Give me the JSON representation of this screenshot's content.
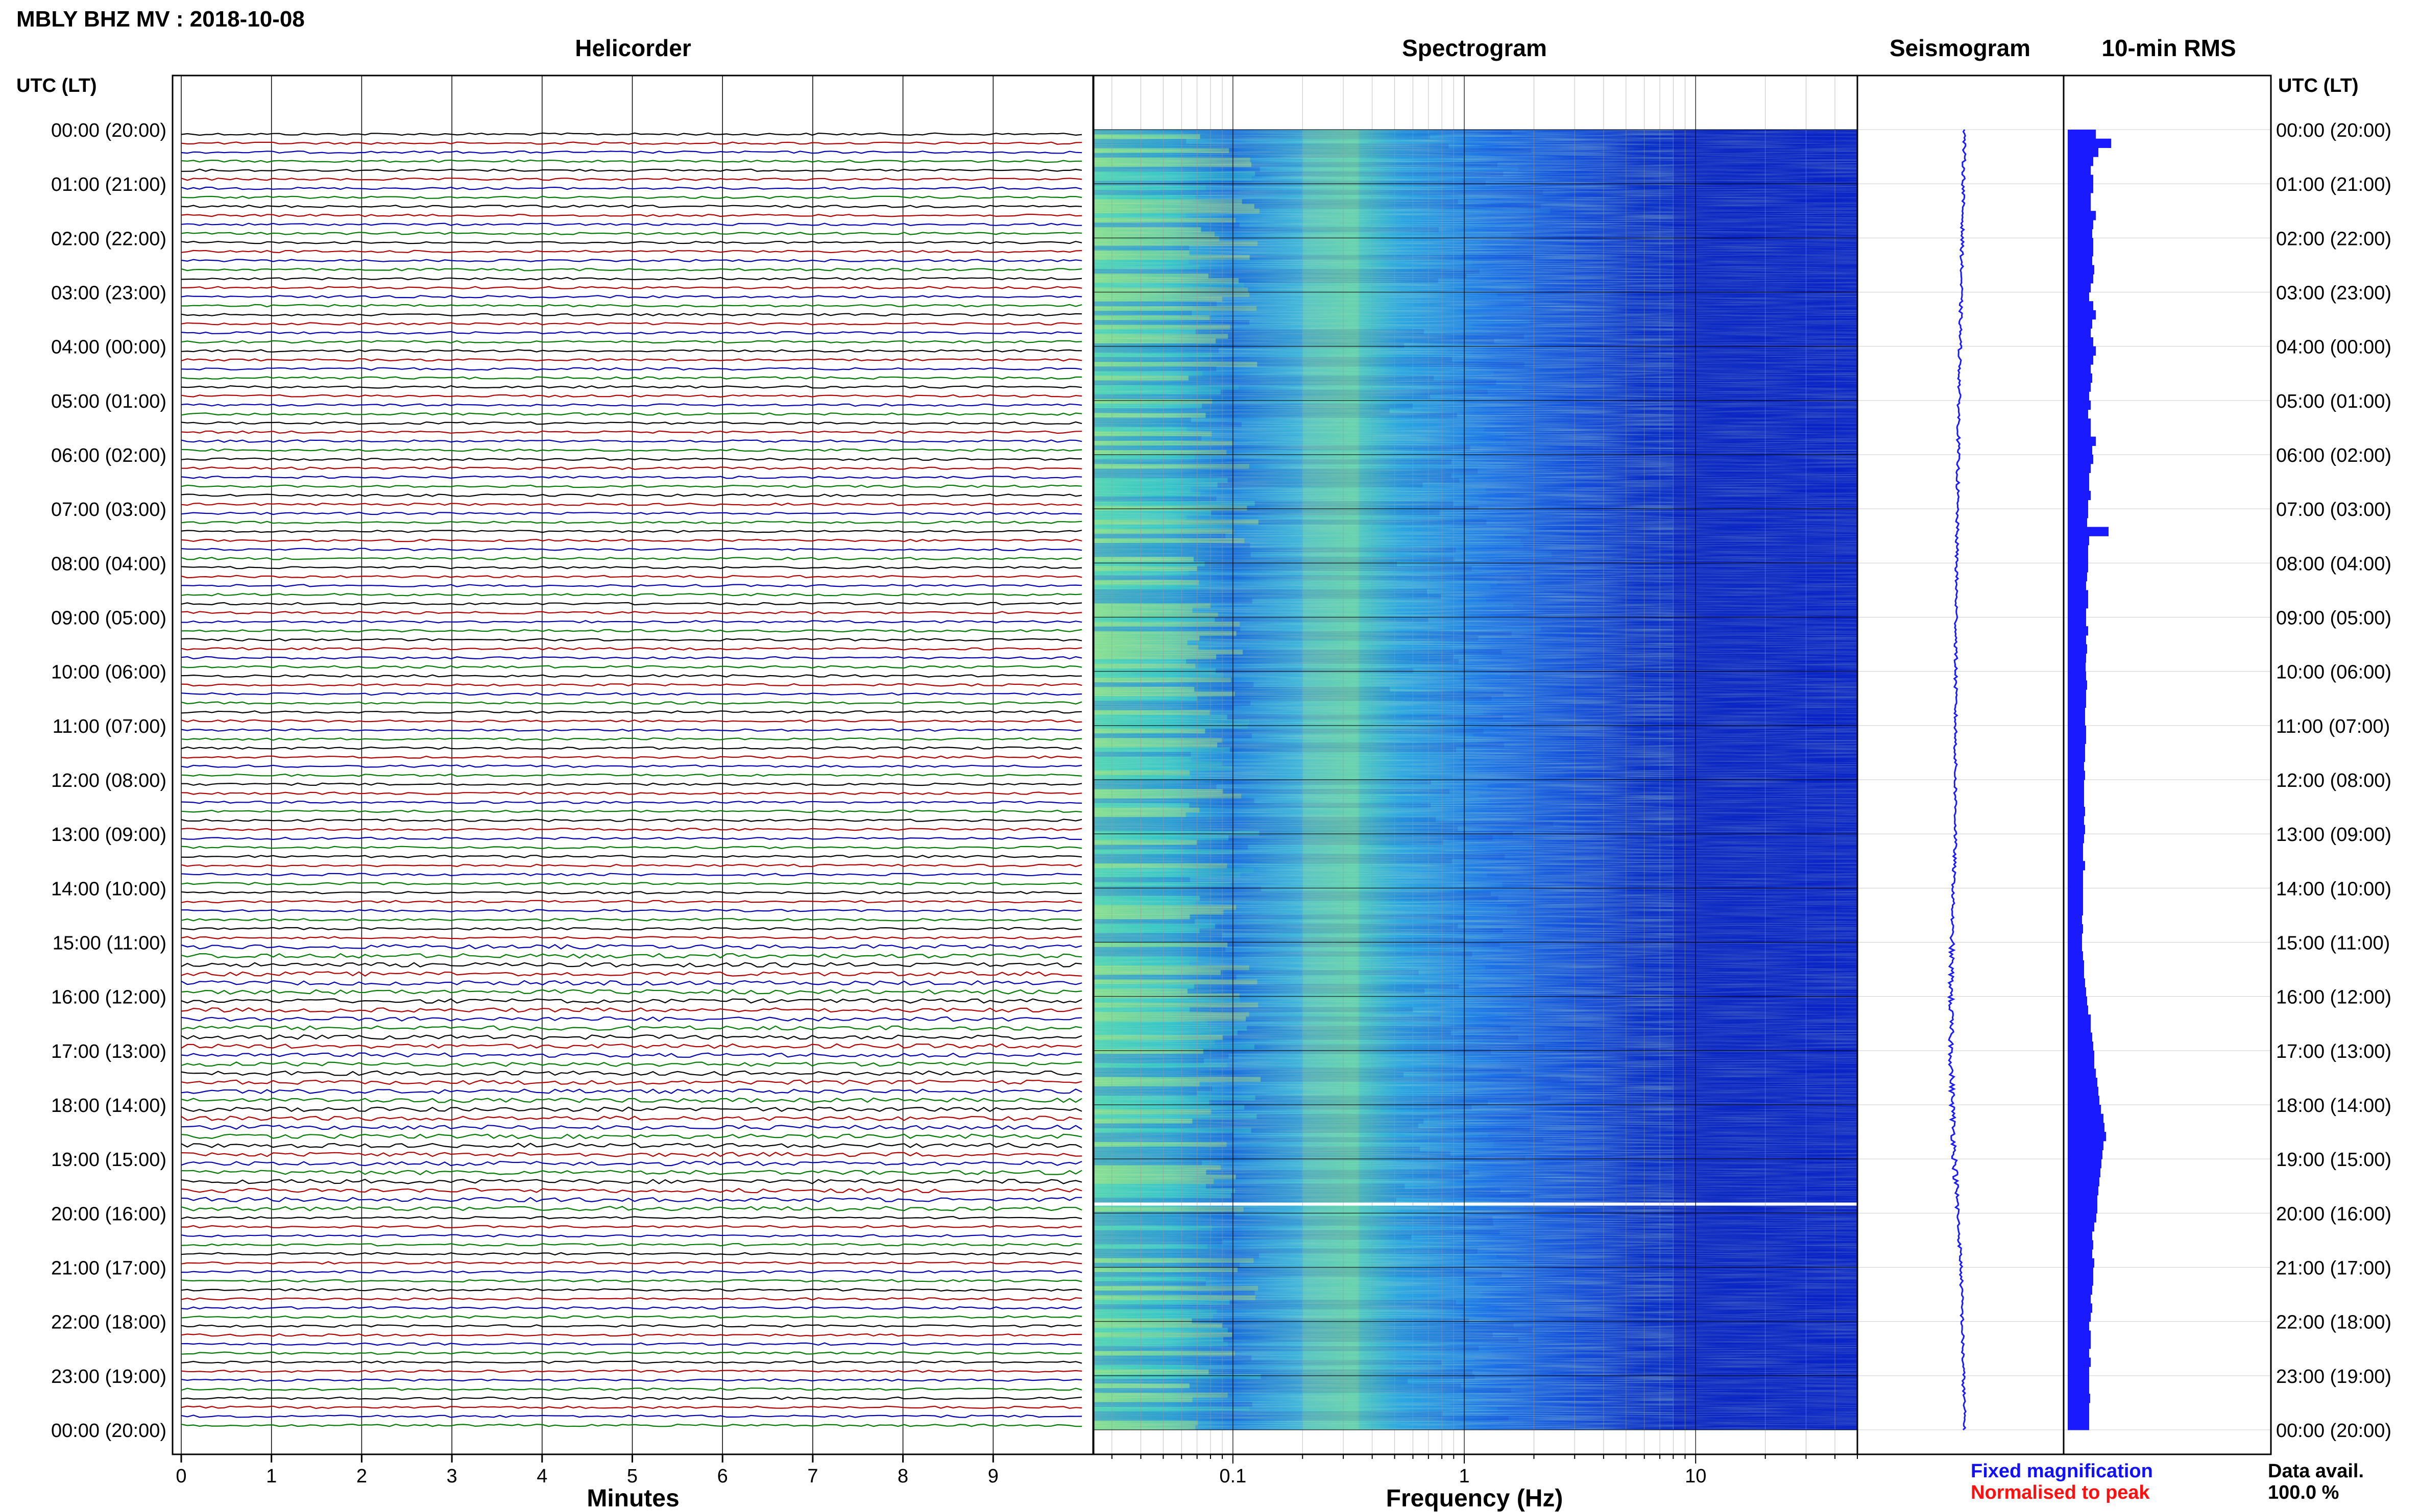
{
  "page": {
    "title": "MBLY BHZ MV : 2018-10-08",
    "left_axis_label": "UTC (LT)",
    "right_axis_label": "UTC (LT)"
  },
  "panels": {
    "helicorder": "Helicorder",
    "spectrogram": "Spectrogram",
    "seismogram": "Seismogram",
    "rms": "10-min RMS"
  },
  "time_labels": [
    "00:00 (20:00)",
    "01:00 (21:00)",
    "02:00 (22:00)",
    "03:00 (23:00)",
    "04:00 (00:00)",
    "05:00 (01:00)",
    "06:00 (02:00)",
    "07:00 (03:00)",
    "08:00 (04:00)",
    "09:00 (05:00)",
    "10:00 (06:00)",
    "11:00 (07:00)",
    "12:00 (08:00)",
    "13:00 (09:00)",
    "14:00 (10:00)",
    "15:00 (11:00)",
    "16:00 (12:00)",
    "17:00 (13:00)",
    "18:00 (14:00)",
    "19:00 (15:00)",
    "20:00 (16:00)",
    "21:00 (17:00)",
    "22:00 (18:00)",
    "23:00 (19:00)",
    "00:00 (20:00)"
  ],
  "legend": {
    "fixed": "Fixed magnification",
    "normalised": "Normalised to peak",
    "fixed_color": "#1010ff",
    "normalised_color": "#ff1010",
    "data_avail_label": "Data avail.",
    "data_avail_value": "100.0 %"
  },
  "colors": {
    "trace_cycle": [
      "#000000",
      "#b00000",
      "#0000b0",
      "#007a00"
    ],
    "seismogram": "#1a1aff",
    "rms_bar": "#1a1aff",
    "gap_line": "#ffffff"
  },
  "chart_data": [
    {
      "type": "line",
      "title": "Helicorder",
      "xlabel": "Minutes",
      "x_ticks": [
        "0",
        "1",
        "2",
        "3",
        "4",
        "5",
        "6",
        "7",
        "8",
        "9"
      ],
      "xlim": [
        0,
        10
      ],
      "rows_per_hour": 6,
      "hours": 24,
      "trace_count": 144,
      "gap_utc": "19:50",
      "active_period_utc": [
        "15:00",
        "20:00"
      ]
    },
    {
      "type": "heatmap",
      "title": "Spectrogram",
      "xlabel": "Frequency (Hz)",
      "x_scale": "log",
      "xlim": [
        0.025,
        50
      ],
      "x_ticks": [
        "0.1",
        "1",
        "10"
      ],
      "colormap": "blue-cyan-yellow",
      "gap_utc": "19:50",
      "dominant_band_hz": [
        0.2,
        0.35
      ]
    },
    {
      "type": "line",
      "title": "Seismogram",
      "orientation": "vertical",
      "time_range_utc": [
        "00:00",
        "24:00"
      ]
    },
    {
      "type": "bar",
      "title": "10-min RMS",
      "orientation": "horizontal",
      "bins": 144,
      "bin_minutes": 10,
      "relative_values": [
        0.55,
        0.85,
        0.6,
        0.5,
        0.45,
        0.5,
        0.5,
        0.45,
        0.45,
        0.55,
        0.5,
        0.48,
        0.5,
        0.5,
        0.48,
        0.52,
        0.5,
        0.45,
        0.42,
        0.5,
        0.55,
        0.48,
        0.45,
        0.5,
        0.55,
        0.5,
        0.45,
        0.48,
        0.45,
        0.42,
        0.45,
        0.4,
        0.45,
        0.45,
        0.55,
        0.48,
        0.5,
        0.45,
        0.42,
        0.42,
        0.45,
        0.4,
        0.4,
        0.38,
        0.8,
        0.42,
        0.4,
        0.4,
        0.4,
        0.38,
        0.36,
        0.4,
        0.4,
        0.36,
        0.36,
        0.4,
        0.36,
        0.38,
        0.36,
        0.35,
        0.36,
        0.38,
        0.36,
        0.36,
        0.34,
        0.34,
        0.36,
        0.36,
        0.34,
        0.34,
        0.32,
        0.34,
        0.32,
        0.32,
        0.32,
        0.34,
        0.32,
        0.34,
        0.32,
        0.3,
        0.3,
        0.34,
        0.3,
        0.3,
        0.3,
        0.3,
        0.3,
        0.28,
        0.3,
        0.28,
        0.28,
        0.3,
        0.32,
        0.32,
        0.34,
        0.36,
        0.38,
        0.4,
        0.45,
        0.45,
        0.48,
        0.5,
        0.52,
        0.52,
        0.55,
        0.58,
        0.6,
        0.62,
        0.65,
        0.7,
        0.72,
        0.75,
        0.7,
        0.68,
        0.66,
        0.64,
        0.62,
        0.6,
        0.58,
        0.58,
        0.56,
        0.52,
        0.48,
        0.5,
        0.48,
        0.52,
        0.5,
        0.5,
        0.48,
        0.45,
        0.48,
        0.45,
        0.42,
        0.45,
        0.45,
        0.42,
        0.45,
        0.42,
        0.42,
        0.42,
        0.44,
        0.42,
        0.42,
        0.42
      ]
    }
  ]
}
